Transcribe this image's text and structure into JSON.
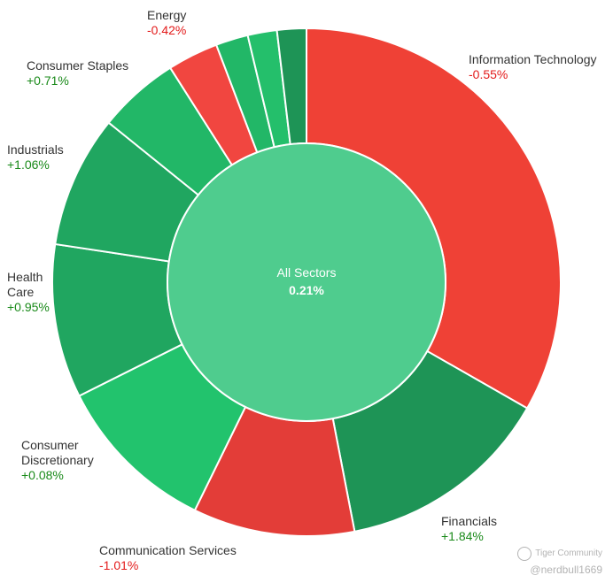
{
  "chart_data": {
    "type": "pie",
    "subtype": "sunburst-donut",
    "center": {
      "label": "All Sectors",
      "value": "0.21%"
    },
    "segments": [
      {
        "name": "Information Technology",
        "change": "-0.55%",
        "weight": 34.0,
        "color": "#ef4136"
      },
      {
        "name": "Financials",
        "change": "+1.84%",
        "weight": 14.0,
        "color": "#1e9456"
      },
      {
        "name": "Communication Services",
        "change": "-1.01%",
        "weight": 10.5,
        "color": "#e33d38"
      },
      {
        "name": "Consumer Discretionary",
        "change": "+0.08%",
        "weight": 10.6,
        "color": "#22c36d"
      },
      {
        "name": "Health Care",
        "change": "+0.95%",
        "weight": 10.0,
        "color": "#20a660"
      },
      {
        "name": "Industrials",
        "change": "+1.06%",
        "weight": 8.6,
        "color": "#20a660"
      },
      {
        "name": "Consumer Staples",
        "change": "+0.71%",
        "weight": 5.3,
        "color": "#22b767"
      },
      {
        "name": "Energy",
        "change": "-0.42%",
        "weight": 3.3,
        "color": "#f14640"
      },
      {
        "name": "",
        "change": "",
        "weight": 2.1,
        "color": "#22b767"
      },
      {
        "name": "",
        "change": "",
        "weight": 1.9,
        "color": "#24bf6b"
      },
      {
        "name": "",
        "change": "",
        "weight": 1.9,
        "color": "#1e9456"
      }
    ],
    "positive_color": "#1a8a1a",
    "negative_color": "#e31b1b",
    "center_color": "#4fcc8e"
  },
  "watermark": {
    "brand": "Tiger Community",
    "handle": "@nerdbull1669"
  }
}
